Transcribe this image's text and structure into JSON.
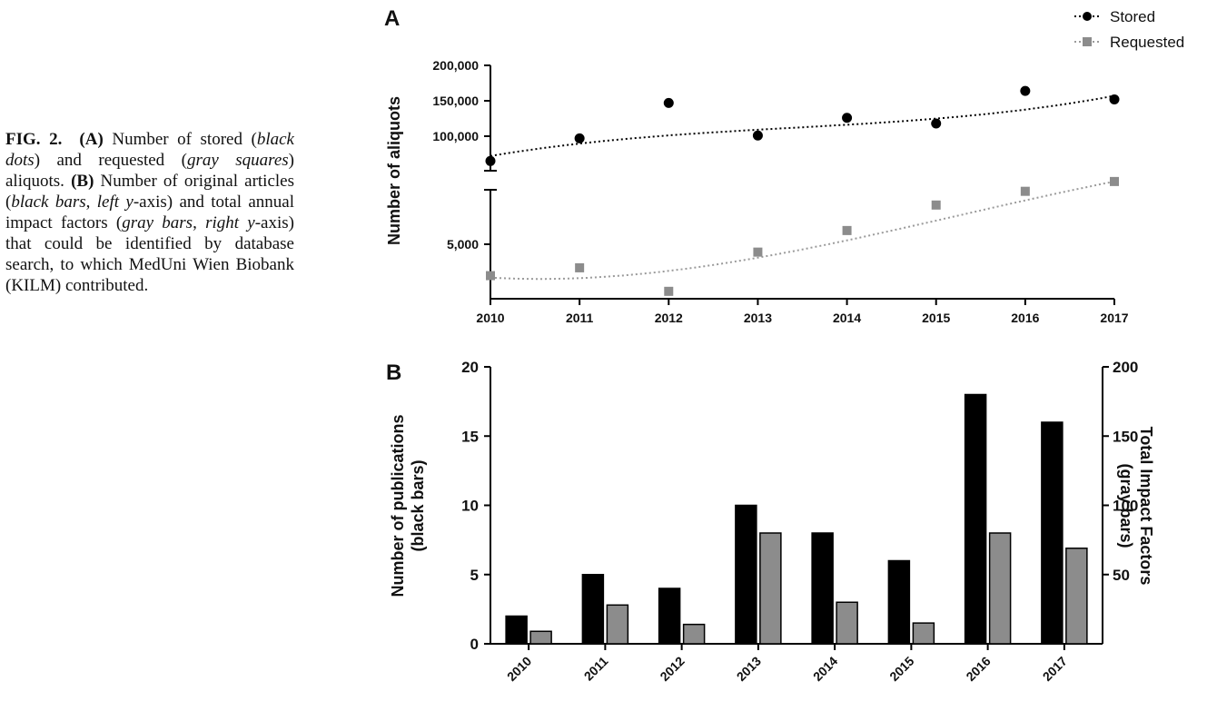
{
  "caption": {
    "p1": "FIG. 2.",
    "p2": "(A)",
    "p3": " Number of stored (",
    "p4": "black dots",
    "p5": ") and requested (",
    "p6": "gray squares",
    "p7": ") aliquots. ",
    "p8": "(B)",
    "p9": " Number of original articles (",
    "p10": "black bars",
    "p11": ", ",
    "p12": "left y",
    "p13": "-axis) and total annual impact factors (",
    "p14": "gray bars",
    "p15": ", ",
    "p16": "right y",
    "p17": "-axis) that could be identified by database search, to which MedUni Wien Biobank (KILM) contributed."
  },
  "colors": {
    "black": "#000000",
    "gray": "#8c8c8c",
    "gray_line": "#9a9a9a"
  },
  "chart_data": [
    {
      "panel": "A",
      "type": "scatter",
      "title": "",
      "xlabel": "",
      "ylabel": "Number of aliquots",
      "x": [
        "2010",
        "2011",
        "2012",
        "2013",
        "2014",
        "2015",
        "2016",
        "2017"
      ],
      "axis_break": true,
      "y_upper_range": [
        60000,
        200000
      ],
      "y_lower_range": [
        2000,
        10000
      ],
      "y_ticks": [
        "200,000",
        "150,000",
        "100,000",
        "5,000"
      ],
      "legend_position": "top-right",
      "legend": [
        "Stored",
        "Requested"
      ],
      "series": [
        {
          "name": "Stored",
          "marker": "circle",
          "color": "#000000",
          "values": [
            65000,
            97000,
            147000,
            101000,
            126000,
            118000,
            164000,
            152000
          ]
        },
        {
          "name": "Requested",
          "marker": "square",
          "color": "#8c8c8c",
          "values": [
            3400,
            3800,
            2600,
            4600,
            5700,
            7000,
            7700,
            8200
          ]
        }
      ],
      "trendline": "dotted polynomial fit"
    },
    {
      "panel": "B",
      "type": "bar",
      "title": "",
      "xlabel": "",
      "categories": [
        "2010",
        "2011",
        "2012",
        "2013",
        "2014",
        "2015",
        "2016",
        "2017"
      ],
      "ylabel_left": [
        "Number of publications",
        "(black bars)"
      ],
      "ylabel_right": [
        "Total Impact Factors",
        "(gray bars)"
      ],
      "ylim_left": [
        0,
        20
      ],
      "ylim_right": [
        0,
        200
      ],
      "y_ticks_left": [
        "0",
        "5",
        "10",
        "15",
        "20"
      ],
      "y_ticks_right": [
        "50",
        "100",
        "150",
        "200"
      ],
      "series": [
        {
          "name": "Number of publications",
          "axis": "left",
          "color": "#000000",
          "values": [
            2,
            5,
            4,
            10,
            8,
            6,
            18,
            16
          ]
        },
        {
          "name": "Total Impact Factors",
          "axis": "right",
          "color": "#8c8c8c",
          "values": [
            9,
            28,
            14,
            80,
            30,
            15,
            80,
            69
          ]
        }
      ]
    }
  ]
}
